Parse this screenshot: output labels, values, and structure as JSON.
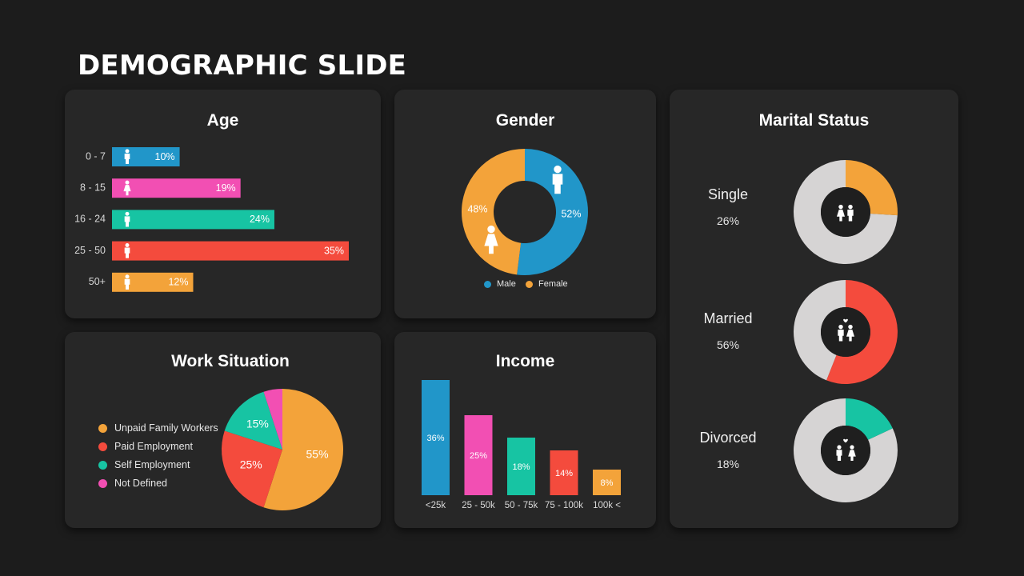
{
  "slide": {
    "title": "DEMOGRAPHIC SLIDE"
  },
  "colors": {
    "blue": "#2196c9",
    "pink": "#f24fb3",
    "teal": "#17c4a3",
    "red": "#f44b3d",
    "orange": "#f3a33a",
    "gray": "#d6d4d4",
    "card": "#272727",
    "background": "#1c1c1c"
  },
  "age": {
    "title": "Age"
  },
  "gender": {
    "title": "Gender",
    "legend": [
      "Male",
      "Female"
    ]
  },
  "marital": {
    "title": "Marital Status",
    "items": [
      {
        "label": "Single",
        "pct": "26%",
        "icon": "couple-icon"
      },
      {
        "label": "Married",
        "pct": "56%",
        "icon": "married-couple-icon"
      },
      {
        "label": "Divorced",
        "pct": "18%",
        "icon": "divorced-couple-icon"
      }
    ]
  },
  "work": {
    "title": "Work Situation"
  },
  "income": {
    "title": "Income"
  },
  "chart_data": [
    {
      "type": "bar",
      "orientation": "horizontal",
      "title": "Age",
      "categories": [
        "0 - 7",
        "8 - 15",
        "16 - 24",
        "25 - 50",
        "50+"
      ],
      "values": [
        10,
        19,
        24,
        35,
        12
      ],
      "labels": [
        "10%",
        "19%",
        "24%",
        "35%",
        "12%"
      ],
      "colors": [
        "#2196c9",
        "#f24fb3",
        "#17c4a3",
        "#f44b3d",
        "#f3a33a"
      ],
      "icons": [
        "baby-icon",
        "child-icon",
        "teen-icon",
        "adult-icon",
        "senior-icon"
      ],
      "xlim": [
        0,
        35
      ]
    },
    {
      "type": "pie",
      "variant": "donut",
      "title": "Gender",
      "categories": [
        "Male",
        "Female"
      ],
      "values": [
        52,
        48
      ],
      "labels": [
        "52%",
        "48%"
      ],
      "colors": [
        "#2196c9",
        "#f3a33a"
      ],
      "icons": [
        "male-icon",
        "female-icon"
      ],
      "legend": "bottom"
    },
    {
      "type": "pie",
      "variant": "donut",
      "title": "Marital Status",
      "categories": [
        "Single",
        "Married",
        "Divorced"
      ],
      "values": [
        26,
        56,
        18
      ],
      "colors": [
        "#f3a33a",
        "#f44b3d",
        "#17c4a3"
      ],
      "remainder_color": "#d6d4d4"
    },
    {
      "type": "pie",
      "title": "Work Situation",
      "categories": [
        "Unpaid Family Workers",
        "Paid Employment",
        "Self Employment",
        "Not Defined"
      ],
      "values": [
        55,
        25,
        15,
        5
      ],
      "labels": [
        "55%",
        "25%",
        "15%",
        ""
      ],
      "colors": [
        "#f3a33a",
        "#f44b3d",
        "#17c4a3",
        "#f24fb3"
      ],
      "legend": "left"
    },
    {
      "type": "bar",
      "title": "Income",
      "categories": [
        "<25k",
        "25 - 50k",
        "50 - 75k",
        "75 - 100k",
        "100k <"
      ],
      "values": [
        36,
        25,
        18,
        14,
        8
      ],
      "labels": [
        "36%",
        "25%",
        "18%",
        "14%",
        "8%"
      ],
      "colors": [
        "#2196c9",
        "#f24fb3",
        "#17c4a3",
        "#f44b3d",
        "#f3a33a"
      ],
      "ylim": [
        0,
        36
      ]
    }
  ]
}
